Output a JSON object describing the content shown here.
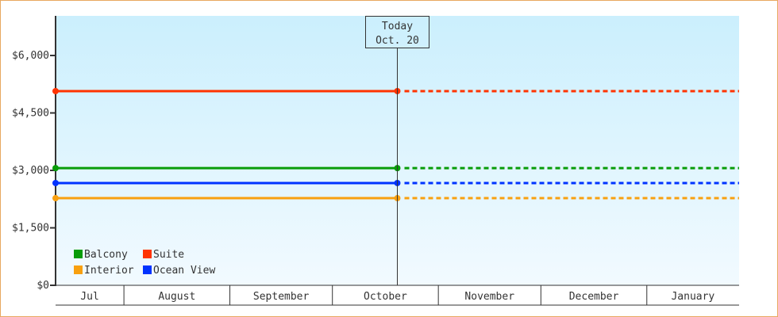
{
  "chart_data": {
    "type": "line",
    "title": "",
    "xlabel": "",
    "ylabel": "",
    "x_range": [
      "2023-07-12",
      "2024-01-28"
    ],
    "ylim": [
      0,
      7035
    ],
    "y_ticks": [
      {
        "value": 0,
        "label": "$0"
      },
      {
        "value": 1500,
        "label": "$1,500"
      },
      {
        "value": 3000,
        "label": "$3,000"
      },
      {
        "value": 4500,
        "label": "$4,500"
      },
      {
        "value": 6000,
        "label": "$6,000"
      }
    ],
    "months": [
      {
        "label": "Jul",
        "start": "2023-07-12",
        "end": "2023-08-01"
      },
      {
        "label": "August",
        "start": "2023-08-01",
        "end": "2023-09-01"
      },
      {
        "label": "September",
        "start": "2023-09-01",
        "end": "2023-10-01"
      },
      {
        "label": "October",
        "start": "2023-10-01",
        "end": "2023-11-01"
      },
      {
        "label": "November",
        "start": "2023-11-01",
        "end": "2023-12-01"
      },
      {
        "label": "December",
        "start": "2023-12-01",
        "end": "2024-01-01"
      },
      {
        "label": "January",
        "start": "2024-01-01",
        "end": "2024-01-28"
      }
    ],
    "today": {
      "date": "2023-10-20",
      "label_line1": "Today",
      "label_line2": "Oct. 20"
    },
    "grid": false,
    "background_gradient": [
      "#cbeffd",
      "#f2faff"
    ],
    "legend_placement": "bottom-left",
    "series": [
      {
        "name": "Balcony",
        "color": "#089c08",
        "points": [
          [
            "2023-07-12",
            3060
          ],
          [
            "2023-10-20",
            3060
          ]
        ],
        "projection_to": "2024-01-28"
      },
      {
        "name": "Suite",
        "color": "#ff3300",
        "points": [
          [
            "2023-07-12",
            5070
          ],
          [
            "2023-10-20",
            5070
          ]
        ],
        "projection_to": "2024-01-28"
      },
      {
        "name": "Interior",
        "color": "#f8a010",
        "points": [
          [
            "2023-07-12",
            2275
          ],
          [
            "2023-10-20",
            2275
          ]
        ],
        "projection_to": "2024-01-28"
      },
      {
        "name": "Ocean View",
        "color": "#0033ff",
        "points": [
          [
            "2023-07-12",
            2670
          ],
          [
            "2023-10-20",
            2670
          ]
        ],
        "projection_to": "2024-01-28"
      }
    ]
  }
}
